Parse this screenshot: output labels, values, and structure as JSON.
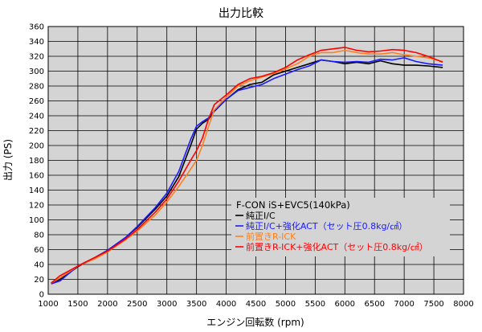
{
  "chart_data": {
    "type": "line",
    "title": "出力比較",
    "xlabel": "エンジン回転数 (rpm)",
    "ylabel": "出力 (PS)",
    "xlim": [
      1000,
      8000
    ],
    "ylim": [
      0,
      360
    ],
    "xticks": [
      1000,
      1500,
      2000,
      2500,
      3000,
      3500,
      4000,
      4500,
      5000,
      5500,
      6000,
      6500,
      7000,
      7500,
      8000
    ],
    "yticks": [
      0,
      20,
      40,
      60,
      80,
      100,
      120,
      140,
      160,
      180,
      200,
      220,
      240,
      260,
      280,
      300,
      320,
      340,
      360
    ],
    "grid": true,
    "legend_position": "lower-right",
    "legend_title": "F-CON iS+EVC5(140kPa)",
    "series": [
      {
        "name": "純正I/C",
        "color": "#000000",
        "points": [
          [
            1050,
            15
          ],
          [
            1200,
            20
          ],
          [
            1500,
            37
          ],
          [
            1800,
            50
          ],
          [
            2000,
            59
          ],
          [
            2300,
            76
          ],
          [
            2500,
            90
          ],
          [
            2800,
            114
          ],
          [
            3000,
            132
          ],
          [
            3200,
            158
          ],
          [
            3400,
            200
          ],
          [
            3500,
            222
          ],
          [
            3600,
            230
          ],
          [
            3700,
            235
          ],
          [
            3800,
            246
          ],
          [
            4000,
            262
          ],
          [
            4200,
            275
          ],
          [
            4400,
            282
          ],
          [
            4600,
            285
          ],
          [
            4800,
            295
          ],
          [
            5000,
            300
          ],
          [
            5200,
            305
          ],
          [
            5400,
            310
          ],
          [
            5600,
            315
          ],
          [
            5800,
            313
          ],
          [
            6000,
            310
          ],
          [
            6200,
            312
          ],
          [
            6400,
            310
          ],
          [
            6600,
            314
          ],
          [
            6800,
            310
          ],
          [
            7000,
            308
          ],
          [
            7200,
            308
          ],
          [
            7400,
            307
          ],
          [
            7650,
            305
          ]
        ]
      },
      {
        "name": "純正I/C+強化ACT（セット圧0.8kg/㎠）",
        "color": "#1a1aff",
        "points": [
          [
            1050,
            14
          ],
          [
            1200,
            18
          ],
          [
            1500,
            38
          ],
          [
            1800,
            50
          ],
          [
            2000,
            59
          ],
          [
            2300,
            76
          ],
          [
            2500,
            91
          ],
          [
            2800,
            116
          ],
          [
            3000,
            136
          ],
          [
            3200,
            165
          ],
          [
            3400,
            208
          ],
          [
            3500,
            226
          ],
          [
            3600,
            232
          ],
          [
            3700,
            237
          ],
          [
            3800,
            247
          ],
          [
            4000,
            262
          ],
          [
            4200,
            274
          ],
          [
            4400,
            278
          ],
          [
            4600,
            282
          ],
          [
            4800,
            290
          ],
          [
            5000,
            296
          ],
          [
            5200,
            302
          ],
          [
            5400,
            307
          ],
          [
            5600,
            315
          ],
          [
            5800,
            313
          ],
          [
            6000,
            312
          ],
          [
            6200,
            313
          ],
          [
            6400,
            312
          ],
          [
            6600,
            316
          ],
          [
            6800,
            315
          ],
          [
            7000,
            318
          ],
          [
            7200,
            313
          ],
          [
            7400,
            310
          ],
          [
            7650,
            308
          ]
        ]
      },
      {
        "name": "前置きR-ICK",
        "color": "#ff8020",
        "points": [
          [
            1050,
            15
          ],
          [
            1200,
            22
          ],
          [
            1500,
            38
          ],
          [
            1800,
            48
          ],
          [
            2000,
            57
          ],
          [
            2300,
            73
          ],
          [
            2500,
            85
          ],
          [
            2800,
            106
          ],
          [
            3000,
            124
          ],
          [
            3200,
            145
          ],
          [
            3400,
            168
          ],
          [
            3500,
            180
          ],
          [
            3600,
            200
          ],
          [
            3700,
            225
          ],
          [
            3800,
            248
          ],
          [
            4000,
            265
          ],
          [
            4200,
            280
          ],
          [
            4400,
            287
          ],
          [
            4600,
            292
          ],
          [
            4800,
            297
          ],
          [
            5000,
            303
          ],
          [
            5200,
            310
          ],
          [
            5400,
            320
          ],
          [
            5600,
            325
          ],
          [
            5800,
            325
          ],
          [
            6000,
            328
          ],
          [
            6200,
            325
          ],
          [
            6400,
            323
          ],
          [
            6600,
            323
          ],
          [
            6800,
            325
          ],
          [
            7000,
            322
          ],
          [
            7200,
            320
          ],
          [
            7400,
            318
          ],
          [
            7650,
            313
          ]
        ]
      },
      {
        "name": "前置きR-ICK+強化ACT（セット圧0.8kg/㎠）",
        "color": "#ff0000",
        "points": [
          [
            1050,
            15
          ],
          [
            1200,
            25
          ],
          [
            1500,
            38
          ],
          [
            1800,
            50
          ],
          [
            2000,
            58
          ],
          [
            2300,
            74
          ],
          [
            2500,
            87
          ],
          [
            2800,
            110
          ],
          [
            3000,
            128
          ],
          [
            3200,
            152
          ],
          [
            3400,
            180
          ],
          [
            3500,
            193
          ],
          [
            3600,
            210
          ],
          [
            3700,
            235
          ],
          [
            3800,
            255
          ],
          [
            4000,
            268
          ],
          [
            4200,
            282
          ],
          [
            4400,
            290
          ],
          [
            4600,
            293
          ],
          [
            4800,
            298
          ],
          [
            5000,
            305
          ],
          [
            5200,
            315
          ],
          [
            5400,
            322
          ],
          [
            5600,
            328
          ],
          [
            5800,
            330
          ],
          [
            6000,
            332
          ],
          [
            6200,
            328
          ],
          [
            6400,
            326
          ],
          [
            6600,
            327
          ],
          [
            6800,
            329
          ],
          [
            7000,
            328
          ],
          [
            7200,
            325
          ],
          [
            7400,
            320
          ],
          [
            7650,
            312
          ]
        ]
      }
    ]
  }
}
